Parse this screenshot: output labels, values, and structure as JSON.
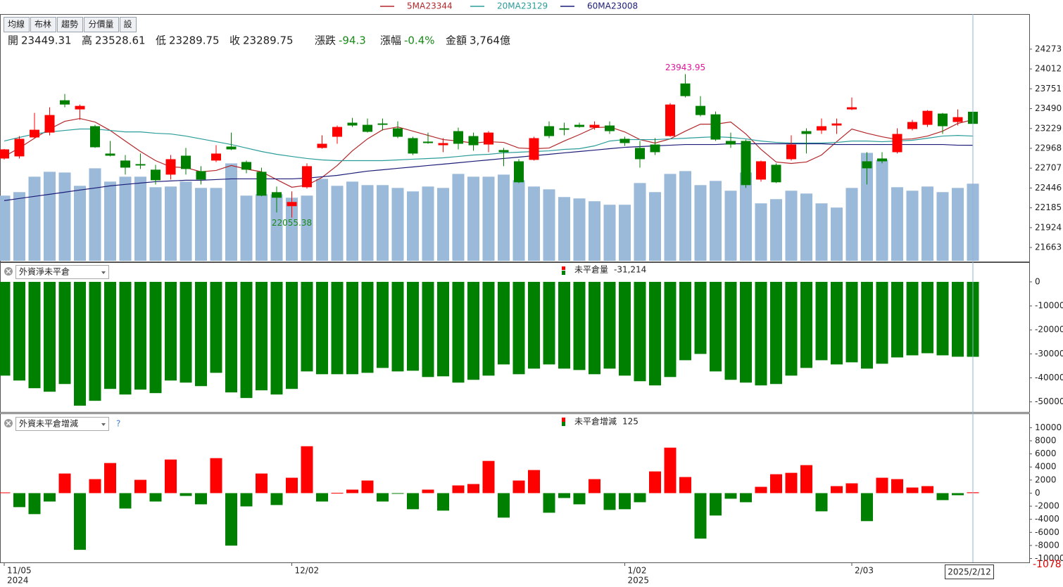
{
  "toolbar": [
    "均線",
    "布林",
    "趨勢",
    "分價量",
    "設"
  ],
  "info": [
    {
      "label": "開",
      "value": "23449.31",
      "color": "#222222"
    },
    {
      "label": "高",
      "value": "23528.61",
      "color": "#222222"
    },
    {
      "label": "低",
      "value": "23289.75",
      "color": "#222222"
    },
    {
      "label": "收",
      "value": "23289.75",
      "color": "#222222"
    },
    {
      "label": "漲跌",
      "value": "-94.3",
      "color": "#1a8a1a"
    },
    {
      "label": "漲幅",
      "value": "-0.4%",
      "color": "#1a8a1a"
    },
    {
      "label": "金額",
      "value": "3,764億",
      "color": "#222222"
    }
  ],
  "cursor": {
    "date": "2025/2/12",
    "value": "-1078"
  },
  "chart_data": [
    {
      "type": "candlestick",
      "categories": [
        "11/05",
        null,
        null,
        null,
        null,
        null,
        null,
        null,
        null,
        null,
        null,
        null,
        null,
        null,
        null,
        null,
        null,
        null,
        null,
        "12/02",
        null,
        null,
        null,
        null,
        null,
        null,
        null,
        null,
        null,
        null,
        null,
        null,
        null,
        null,
        null,
        null,
        null,
        null,
        null,
        null,
        null,
        "1/02",
        null,
        null,
        null,
        null,
        null,
        null,
        null,
        null,
        null,
        null,
        null,
        null,
        null,
        null,
        "2/03",
        null,
        null,
        null,
        null,
        null,
        null,
        null,
        null
      ],
      "sub_categories": [
        "2024",
        null,
        null,
        null,
        null,
        null,
        null,
        null,
        null,
        null,
        null,
        null,
        null,
        null,
        null,
        null,
        null,
        null,
        null,
        null,
        null,
        null,
        null,
        null,
        null,
        null,
        null,
        null,
        null,
        null,
        null,
        null,
        null,
        null,
        null,
        null,
        null,
        null,
        null,
        null,
        null,
        "2025",
        null,
        null,
        null,
        null,
        null,
        null,
        null,
        null,
        null,
        null,
        null,
        null,
        null,
        null,
        null,
        null,
        null,
        null,
        null,
        null,
        null,
        null,
        null
      ],
      "open": [
        22834,
        22862,
        23111,
        23175,
        23600,
        23480,
        23259,
        22899,
        22807,
        22760,
        22687,
        22622,
        22871,
        22668,
        22807,
        22991,
        22788,
        22659,
        22391,
        22207,
        22456,
        22973,
        23120,
        23305,
        23277,
        23295,
        23231,
        23102,
        23056,
        23009,
        23194,
        23129,
        23018,
        22945,
        22797,
        22816,
        23259,
        23231,
        23277,
        23240,
        23268,
        23093,
        22973,
        23018,
        23129,
        23821,
        23526,
        23415,
        23065,
        23065,
        22557,
        22751,
        22825,
        23194,
        23203,
        23268,
        23480,
        22797,
        22834,
        22917,
        23222,
        23277,
        23425,
        23314,
        23449.31
      ],
      "high": [
        22960,
        23129,
        23434,
        23508,
        23683,
        23544,
        23277,
        23065,
        22880,
        22899,
        22751,
        22880,
        22973,
        22733,
        23009,
        23175,
        22807,
        22714,
        22465,
        22401,
        22770,
        23139,
        23268,
        23369,
        23360,
        23360,
        23323,
        23120,
        23175,
        23102,
        23240,
        23175,
        23194,
        22973,
        22825,
        23120,
        23323,
        23305,
        23305,
        23323,
        23323,
        23120,
        23065,
        23102,
        23563,
        23943.95,
        23655,
        23452,
        23175,
        23083,
        22807,
        22770,
        23139,
        23231,
        23360,
        23360,
        23637,
        22917,
        22917,
        23231,
        23342,
        23471,
        23434,
        23480,
        23528.61
      ],
      "low": [
        22820,
        22834,
        23102,
        23138,
        23508,
        23342,
        22973,
        22862,
        22622,
        22696,
        22493,
        22557,
        22622,
        22493,
        22788,
        22945,
        22640,
        22336,
        22124,
        22055.38,
        22438,
        22963,
        23028,
        23249,
        23175,
        23203,
        23102,
        22880,
        23028,
        22917,
        22954,
        22936,
        22917,
        22733,
        22511,
        22807,
        23102,
        23139,
        23240,
        23212,
        23157,
        23000,
        22714,
        22880,
        23120,
        23637,
        23388,
        23065,
        22973,
        22447,
        22530,
        22511,
        22807,
        22899,
        23157,
        23157,
        23471,
        22493,
        22770,
        22899,
        23203,
        23249,
        23157,
        23268,
        23289.75
      ],
      "close": [
        22954,
        23093,
        23212,
        23406,
        23544,
        23526,
        22982,
        22871,
        22714,
        22742,
        22548,
        22825,
        22696,
        22557,
        22899,
        22954,
        22687,
        22345,
        22318,
        22262,
        22733,
        23028,
        23249,
        23268,
        23185,
        23277,
        23120,
        22899,
        23037,
        23037,
        23028,
        23009,
        23175,
        22917,
        22521,
        23102,
        23129,
        23212,
        23249,
        23277,
        23194,
        23037,
        22825,
        22917,
        23544,
        23655,
        23406,
        23083,
        23018,
        22484,
        22797,
        22521,
        23018,
        23157,
        23259,
        23295,
        23508,
        22705,
        22797,
        23157,
        23314,
        23461,
        23259,
        23378,
        23289.75
      ],
      "up_color": "#ff0000",
      "down_color": "#008000",
      "volume": [
        3181,
        3352,
        4104,
        4343,
        4309,
        3660,
        4514,
        3865,
        4104,
        4104,
        3591,
        3625,
        3865,
        3557,
        3557,
        4754,
        3181,
        3249,
        3249,
        3078,
        3181,
        4001,
        3660,
        3865,
        3694,
        3694,
        3557,
        3386,
        3625,
        3557,
        4241,
        4104,
        4104,
        4206,
        3933,
        3625,
        3488,
        3112,
        3044,
        2907,
        2736,
        2736,
        3796,
        3352,
        4241,
        4378,
        3694,
        3899,
        3420,
        4309,
        2804,
        3010,
        3420,
        3283,
        2804,
        2599,
        3557,
        5267,
        4925,
        3591,
        3420,
        3625,
        3352,
        3557,
        3764
      ],
      "volume_color": "#9bbad9",
      "series": [
        {
          "name": "5MA",
          "color": "#b3262a",
          "values": [
            22861,
            22972,
            23101,
            23222,
            23323,
            23360,
            23314,
            23203,
            23064,
            22926,
            22806,
            22723,
            22714,
            22659,
            22677,
            22742,
            22695,
            22659,
            22557,
            22456,
            22483,
            22585,
            22742,
            22935,
            23092,
            23212,
            23249,
            23194,
            23138,
            23083,
            23064,
            23037,
            23055,
            23046,
            22972,
            22963,
            22972,
            23064,
            23148,
            23240,
            23249,
            23184,
            23083,
            23037,
            23092,
            23194,
            23286,
            23286,
            23314,
            23157,
            22954,
            22788,
            22769,
            22788,
            22880,
            23055,
            23222,
            23166,
            23120,
            23083,
            23092,
            23129,
            23194,
            23295,
            23344
          ]
        },
        {
          "name": "20MA",
          "color": "#2a9d9a",
          "values": [
            23064,
            23111,
            23157,
            23184,
            23203,
            23222,
            23222,
            23203,
            23184,
            23184,
            23166,
            23157,
            23129,
            23092,
            23055,
            23018,
            22972,
            22926,
            22889,
            22861,
            22834,
            22815,
            22806,
            22806,
            22806,
            22806,
            22815,
            22825,
            22834,
            22843,
            22861,
            22880,
            22889,
            22908,
            22917,
            22926,
            22935,
            22954,
            22963,
            23000,
            23064,
            23083,
            23083,
            23083,
            23092,
            23101,
            23111,
            23120,
            23111,
            23092,
            23064,
            23046,
            23037,
            23037,
            23037,
            23046,
            23064,
            23064,
            23055,
            23064,
            23074,
            23101,
            23129,
            23138,
            23129
          ]
        },
        {
          "name": "60MA",
          "color": "#1c1c78",
          "values": [
            22280,
            22308,
            22336,
            22363,
            22391,
            22419,
            22446,
            22474,
            22493,
            22511,
            22529,
            22539,
            22548,
            22548,
            22557,
            22566,
            22566,
            22566,
            22566,
            22566,
            22576,
            22594,
            22612,
            22640,
            22668,
            22686,
            22705,
            22723,
            22742,
            22760,
            22778,
            22797,
            22815,
            22834,
            22852,
            22871,
            22889,
            22908,
            22926,
            22944,
            22963,
            22981,
            22991,
            23000,
            23009,
            23018,
            23018,
            23018,
            23028,
            23028,
            23028,
            23028,
            23028,
            23028,
            23028,
            23018,
            23018,
            23018,
            23018,
            23018,
            23018,
            23018,
            23018,
            23009,
            23008
          ]
        }
      ],
      "high_label_color": "#e0169b",
      "low_label_color": "#1a8a1a",
      "ylim": [
        21488,
        24725
      ],
      "yticks": [
        24273,
        24012,
        23751,
        23490,
        23229,
        22968,
        22707,
        22446,
        22185,
        21924,
        21663
      ]
    },
    {
      "type": "bar",
      "selector": "外資淨未平倉",
      "title": "未平倉量",
      "color": "#008000",
      "values": [
        -39061,
        -41102,
        -44308,
        -45766,
        -42559,
        -51596,
        -49555,
        -44600,
        -46932,
        -44891,
        -46349,
        -41102,
        -41976,
        -43434,
        -37895,
        -46057,
        -48389,
        -45183,
        -46932,
        -44600,
        -37312,
        -38478,
        -38478,
        -38478,
        -37895,
        -35855,
        -37312,
        -37021,
        -39644,
        -39353,
        -41976,
        -40810,
        -39061,
        -34397,
        -38478,
        -36146,
        -34397,
        -36146,
        -36729,
        -38478,
        -36146,
        -39061,
        -41393,
        -43142,
        -39644,
        -32648,
        -30025,
        -37312,
        -40810,
        -41976,
        -43142,
        -42559,
        -39061,
        -35855,
        -32648,
        -34397,
        -33523,
        -36146,
        -34106,
        -31482,
        -30608,
        -29733,
        -30608,
        -31190,
        -31214
      ],
      "value_labels": [
        null,
        null,
        null,
        null,
        null,
        null,
        null,
        null,
        null,
        null,
        null,
        null,
        null,
        null,
        null,
        null,
        null,
        null,
        null,
        null,
        null,
        null,
        null,
        null,
        null,
        null,
        null,
        null,
        null,
        null,
        null,
        null,
        null,
        null,
        null,
        null,
        null,
        null,
        null,
        null,
        null,
        null,
        null,
        null,
        null,
        null,
        null,
        null,
        null,
        null,
        null,
        null,
        null,
        null,
        null,
        null,
        null,
        null,
        null,
        null,
        null,
        null,
        null,
        null,
        "-31,214"
      ],
      "ylim": [
        -54200,
        7600
      ],
      "yticks": [
        0,
        -10000,
        -20000,
        -30000,
        -40000,
        -50000
      ]
    },
    {
      "type": "bar",
      "selector": "外資未平倉增減",
      "help": "?",
      "title": "未平倉增減",
      "up_color": "#ff0000",
      "down_color": "#008000",
      "values": [
        107,
        -2140,
        -3210,
        -1284,
        2996,
        -8667,
        2140,
        4601,
        -2354,
        2033,
        -1284,
        5136,
        -428,
        -1712,
        5350,
        -8025,
        -2033,
        2996,
        -1819,
        2354,
        7169,
        -1284,
        50,
        535,
        1926,
        -1284,
        -100,
        -2461,
        535,
        -2675,
        1177,
        1391,
        4922,
        -3745,
        1926,
        3531,
        -2996,
        -749,
        -1712,
        2140,
        -2568,
        -2461,
        -1391,
        3317,
        6955,
        2461,
        -6955,
        -3424,
        -856,
        -1391,
        963,
        2889,
        3103,
        4280,
        -2782,
        1070,
        1498,
        -4280,
        2354,
        2140,
        856,
        1070,
        -1070,
        -321,
        125
      ],
      "ylim": [
        -10590,
        11980
      ],
      "yticks": [
        10000,
        8000,
        6000,
        4000,
        2000,
        0,
        -2000,
        -4000,
        -6000,
        -8000,
        -10000
      ]
    }
  ]
}
